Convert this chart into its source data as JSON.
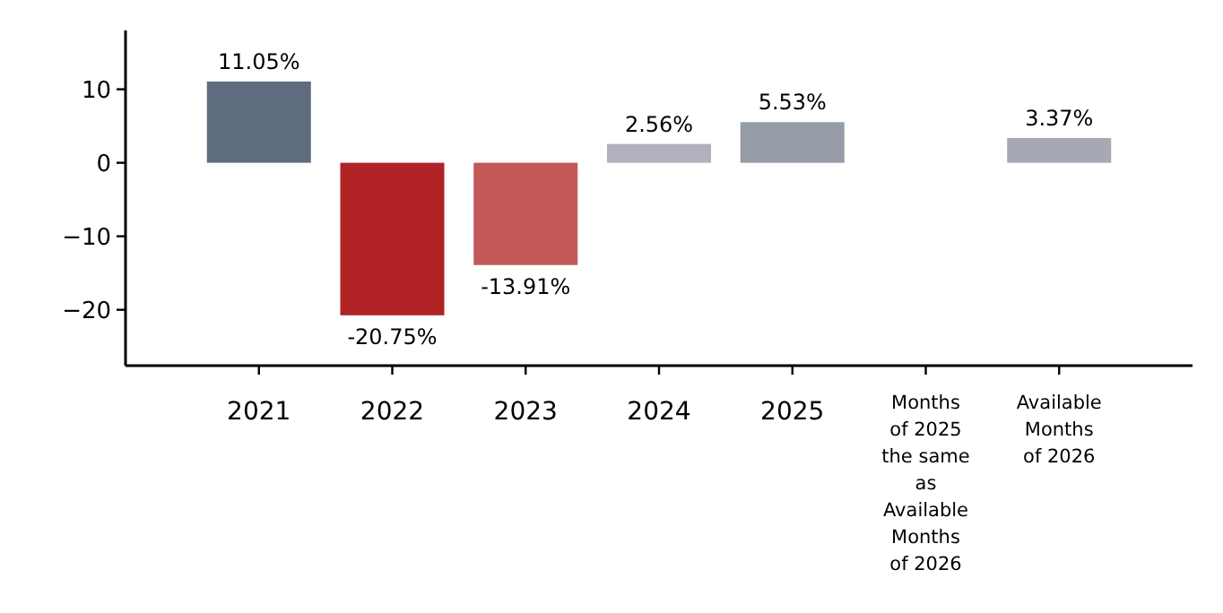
{
  "chart_data": {
    "type": "bar",
    "categories": [
      "2021",
      "2022",
      "2023",
      "2024",
      "2025",
      "Months of 2025 the same as Available Months of 2026",
      "Available Months of 2026"
    ],
    "values": [
      11.05,
      -20.75,
      -13.91,
      2.56,
      5.53,
      null,
      3.37
    ],
    "colors": [
      "#5f6b7e",
      "#b02224",
      "#c35859",
      "#b0b1bc",
      "#959ca7",
      null,
      "#a6a8b4"
    ],
    "value_labels": [
      "11.05%",
      "-20.75%",
      "-13.91%",
      "2.56%",
      "5.53%",
      null,
      "3.37%"
    ],
    "ylim": [
      -27.6,
      18
    ],
    "yticks": [
      -20,
      -10,
      0,
      10
    ],
    "grid": false
  }
}
